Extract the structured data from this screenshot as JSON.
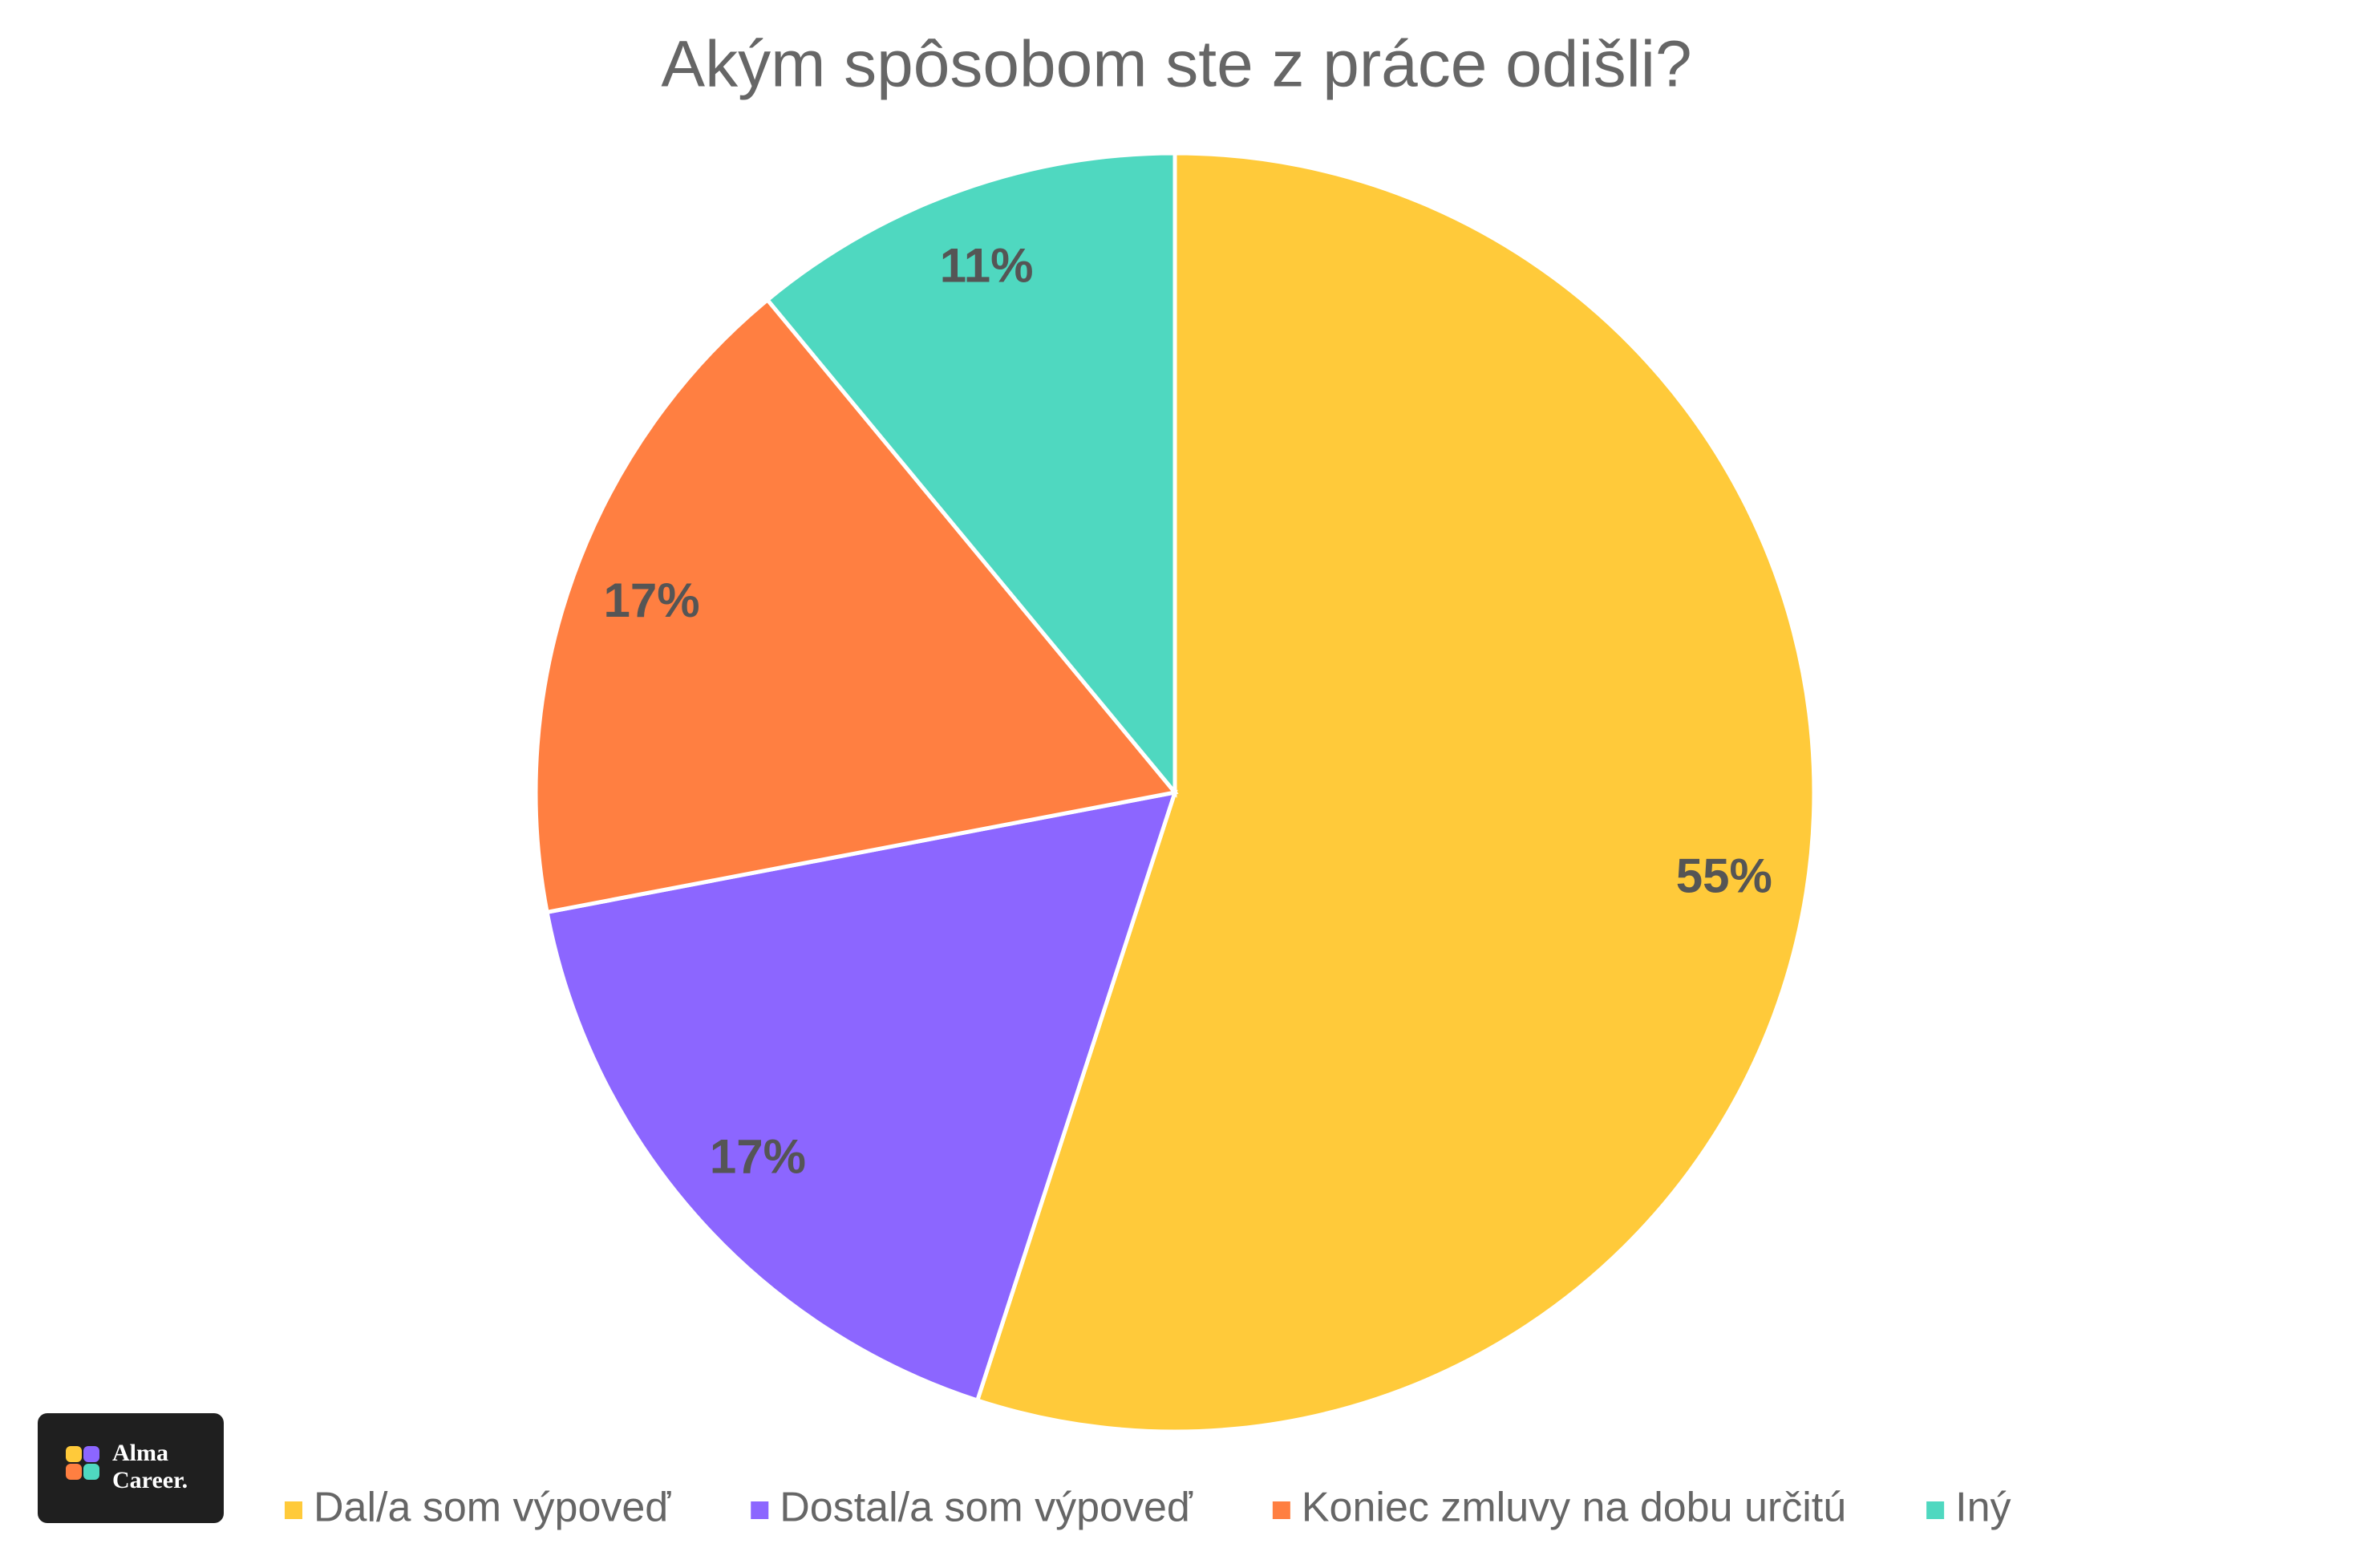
{
  "chart_data": {
    "type": "pie",
    "title": "Akým spôsobom ste z práce odišli?",
    "categories": [
      "Dal/a som výpoveď",
      "Dostal/a som výpoveď",
      "Koniec zmluvy na dobu určitú",
      "Iný"
    ],
    "values": [
      55,
      17,
      17,
      11
    ],
    "value_labels": [
      "55%",
      "17%",
      "17%",
      "11%"
    ],
    "colors": [
      "#FFCA3A",
      "#8C66FF",
      "#FF7F41",
      "#4FD8C0"
    ],
    "legend": "bottom"
  },
  "logo": {
    "lines": [
      "Alma",
      "Career."
    ]
  }
}
